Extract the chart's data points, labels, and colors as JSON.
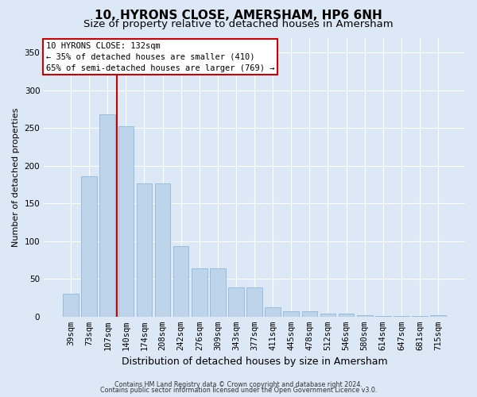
{
  "title": "10, HYRONS CLOSE, AMERSHAM, HP6 6NH",
  "subtitle": "Size of property relative to detached houses in Amersham",
  "xlabel": "Distribution of detached houses by size in Amersham",
  "ylabel": "Number of detached properties",
  "categories": [
    "39sqm",
    "73sqm",
    "107sqm",
    "140sqm",
    "174sqm",
    "208sqm",
    "242sqm",
    "276sqm",
    "309sqm",
    "343sqm",
    "377sqm",
    "411sqm",
    "445sqm",
    "478sqm",
    "512sqm",
    "546sqm",
    "580sqm",
    "614sqm",
    "647sqm",
    "681sqm",
    "715sqm"
  ],
  "values": [
    30,
    186,
    268,
    253,
    177,
    177,
    94,
    64,
    64,
    39,
    39,
    12,
    7,
    7,
    4,
    4,
    2,
    1,
    1,
    1,
    2
  ],
  "bar_color": "#bdd4ea",
  "bar_edge_color": "#8fb8d8",
  "vline_color": "#cc0000",
  "vline_pos": 2.5,
  "annotation_title": "10 HYRONS CLOSE: 132sqm",
  "annotation_line1": "← 35% of detached houses are smaller (410)",
  "annotation_line2": "65% of semi-detached houses are larger (769) →",
  "annotation_box_facecolor": "#ffffff",
  "annotation_box_edgecolor": "#cc0000",
  "footnote1": "Contains HM Land Registry data © Crown copyright and database right 2024.",
  "footnote2": "Contains public sector information licensed under the Open Government Licence v3.0.",
  "ylim": [
    0,
    370
  ],
  "yticks": [
    0,
    50,
    100,
    150,
    200,
    250,
    300,
    350
  ],
  "bg_color": "#dce8f5",
  "grid_color": "#ffffff",
  "title_fontsize": 11,
  "subtitle_fontsize": 9.5,
  "xlabel_fontsize": 9,
  "ylabel_fontsize": 8,
  "tick_fontsize": 7.5,
  "annot_fontsize": 7.5,
  "footnote_fontsize": 5.8
}
